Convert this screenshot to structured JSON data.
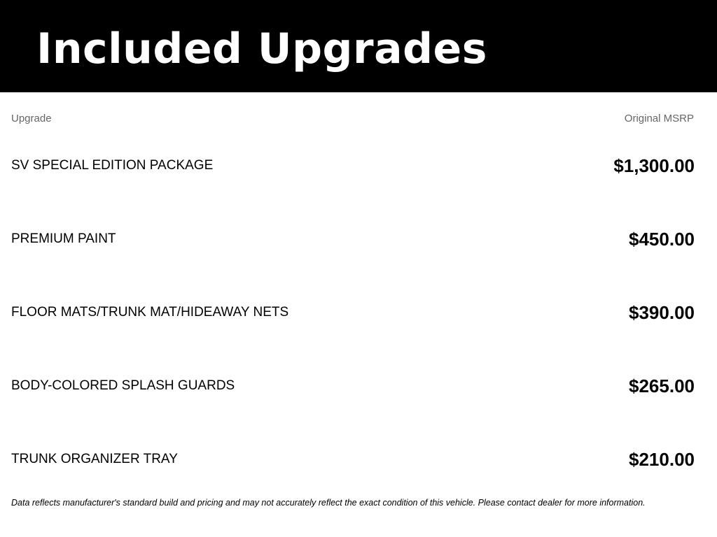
{
  "title": "Included Upgrades",
  "columns": {
    "upgrade": "Upgrade",
    "msrp": "Original MSRP"
  },
  "rows": [
    {
      "name": "SV SPECIAL EDITION PACKAGE",
      "price": "$1,300.00"
    },
    {
      "name": "PREMIUM PAINT",
      "price": "$450.00"
    },
    {
      "name": "FLOOR MATS/TRUNK MAT/HIDEAWAY NETS",
      "price": "$390.00"
    },
    {
      "name": "BODY-COLORED SPLASH GUARDS",
      "price": "$265.00"
    },
    {
      "name": "TRUNK ORGANIZER TRAY",
      "price": "$210.00"
    }
  ],
  "disclaimer": "Data reflects manufacturer's standard build and pricing and may not accurately reflect the exact condition of this vehicle. Please contact dealer for more information."
}
